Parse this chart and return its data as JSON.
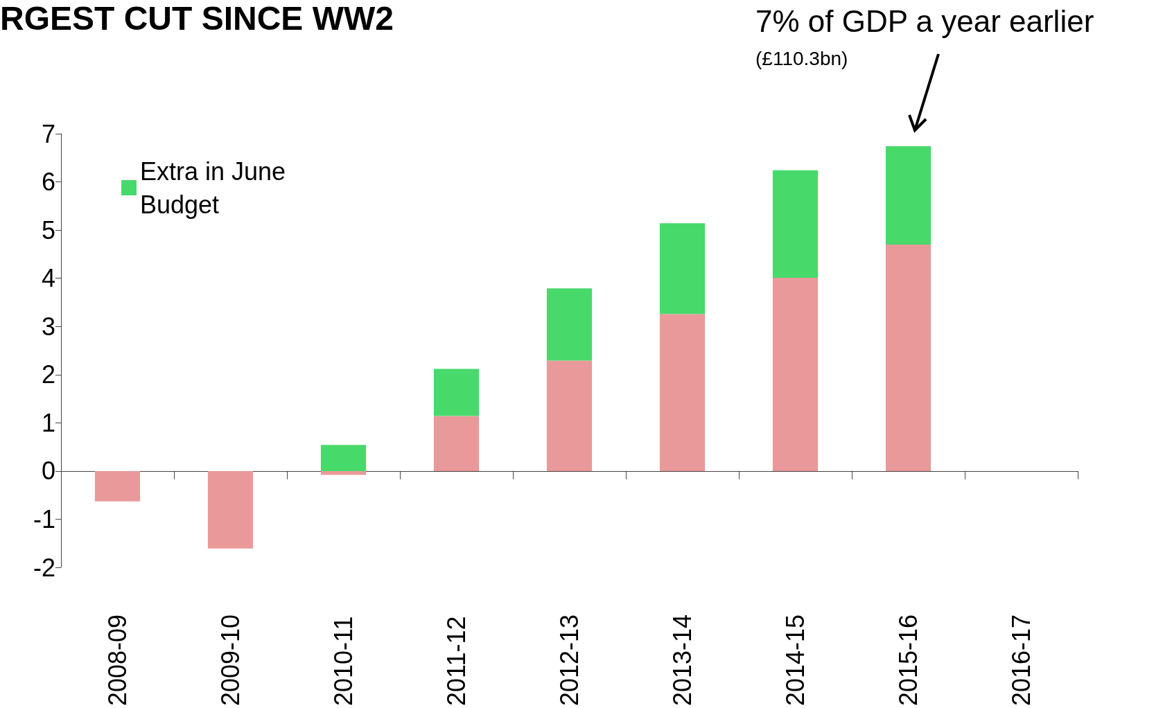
{
  "chart_data": {
    "type": "bar",
    "title": "RGEST CUT SINCE WW2",
    "categories": [
      "2008-09",
      "2009-10",
      "2010-11",
      "2011-12",
      "2012-13",
      "2013-14",
      "2014-15",
      "2015-16",
      "2016-17"
    ],
    "series": [
      {
        "color": "#e99999",
        "values": [
          -0.63,
          -1.61,
          -0.08,
          1.14,
          2.29,
          3.26,
          4.01,
          4.7,
          null
        ]
      },
      {
        "name": "Extra in June Budget",
        "color": "#48d96b",
        "values": [
          null,
          null,
          0.54,
          0.98,
          1.5,
          1.88,
          2.23,
          2.04,
          null
        ]
      }
    ],
    "stacked": true,
    "ylim": [
      -2,
      7
    ],
    "yticks": [
      -2,
      -1,
      0,
      1,
      2,
      3,
      4,
      5,
      6,
      7
    ],
    "legend": "top left",
    "annotations": [
      "7% of GDP a year earlier",
      "(£110.3bn)"
    ]
  }
}
